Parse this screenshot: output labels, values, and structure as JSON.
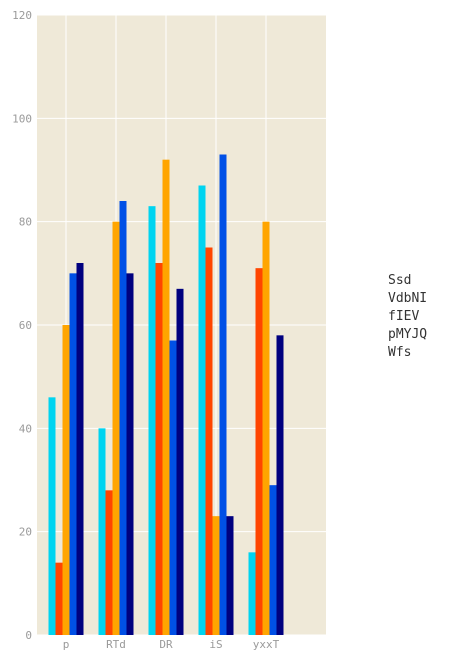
{
  "chart_data": {
    "type": "bar",
    "categories": [
      "p",
      "RTd",
      "DR",
      "iS",
      "yxxT"
    ],
    "series": [
      {
        "name": "Ssd",
        "values": [
          46,
          40,
          83,
          87,
          16
        ],
        "color": "#00d4f0"
      },
      {
        "name": "VdbNI",
        "values": [
          14,
          28,
          72,
          75,
          71
        ],
        "color": "#ff4500"
      },
      {
        "name": "fIEV",
        "values": [
          60,
          80,
          92,
          23,
          80
        ],
        "color": "#ffa500"
      },
      {
        "name": "pMYJQ",
        "values": [
          70,
          84,
          57,
          93,
          29
        ],
        "color": "#0050e6"
      },
      {
        "name": "Wfs",
        "values": [
          72,
          70,
          67,
          23,
          58
        ],
        "color": "#00007f"
      }
    ],
    "yticks": [
      "0",
      "20",
      "40",
      "60",
      "80",
      "100",
      "120"
    ],
    "ylim": [
      0,
      120
    ],
    "title": "",
    "xlabel": "",
    "ylabel": "",
    "grid": true,
    "legend_position": "right",
    "plot_background": "#efe9d8",
    "grid_color": "#ffffff"
  }
}
